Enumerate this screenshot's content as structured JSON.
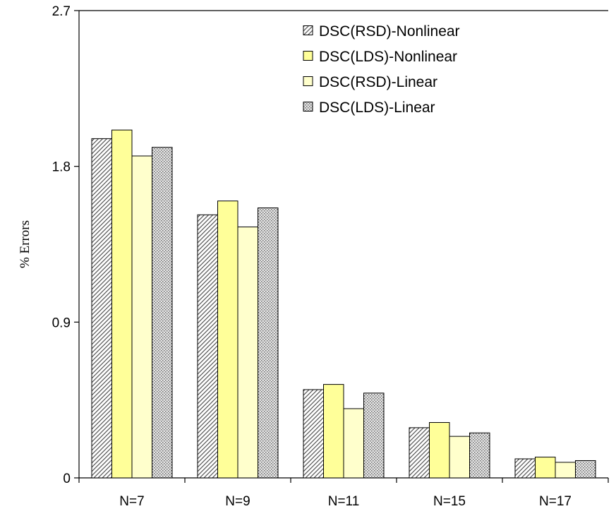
{
  "chart_data": {
    "type": "bar",
    "title": "",
    "xlabel": "",
    "ylabel": "% Errors",
    "ylim": [
      0,
      2.7
    ],
    "yticks": [
      "0",
      "0.9",
      "1.8",
      "2.7"
    ],
    "grid": false,
    "legend_position": "top-right",
    "categories": [
      "N=7",
      "N=9",
      "N=11",
      "N=15",
      "N=17"
    ],
    "series": [
      {
        "name": "DSC(RSD)-Nonlinear",
        "values": [
          1.96,
          1.52,
          0.51,
          0.29,
          0.11
        ],
        "color": "#ffffff",
        "pattern": "diagonal-hatch"
      },
      {
        "name": "DSC(LDS)-Nonlinear",
        "values": [
          2.01,
          1.6,
          0.54,
          0.32,
          0.12
        ],
        "color": "#ffff99",
        "pattern": "solid"
      },
      {
        "name": "DSC(RSD)-Linear",
        "values": [
          1.86,
          1.45,
          0.4,
          0.24,
          0.09
        ],
        "color": "#ffffcc",
        "pattern": "solid"
      },
      {
        "name": "DSC(LDS)-Linear",
        "values": [
          1.91,
          1.56,
          0.49,
          0.26,
          0.1
        ],
        "color": "#d9d9d9",
        "pattern": "dots"
      }
    ]
  }
}
